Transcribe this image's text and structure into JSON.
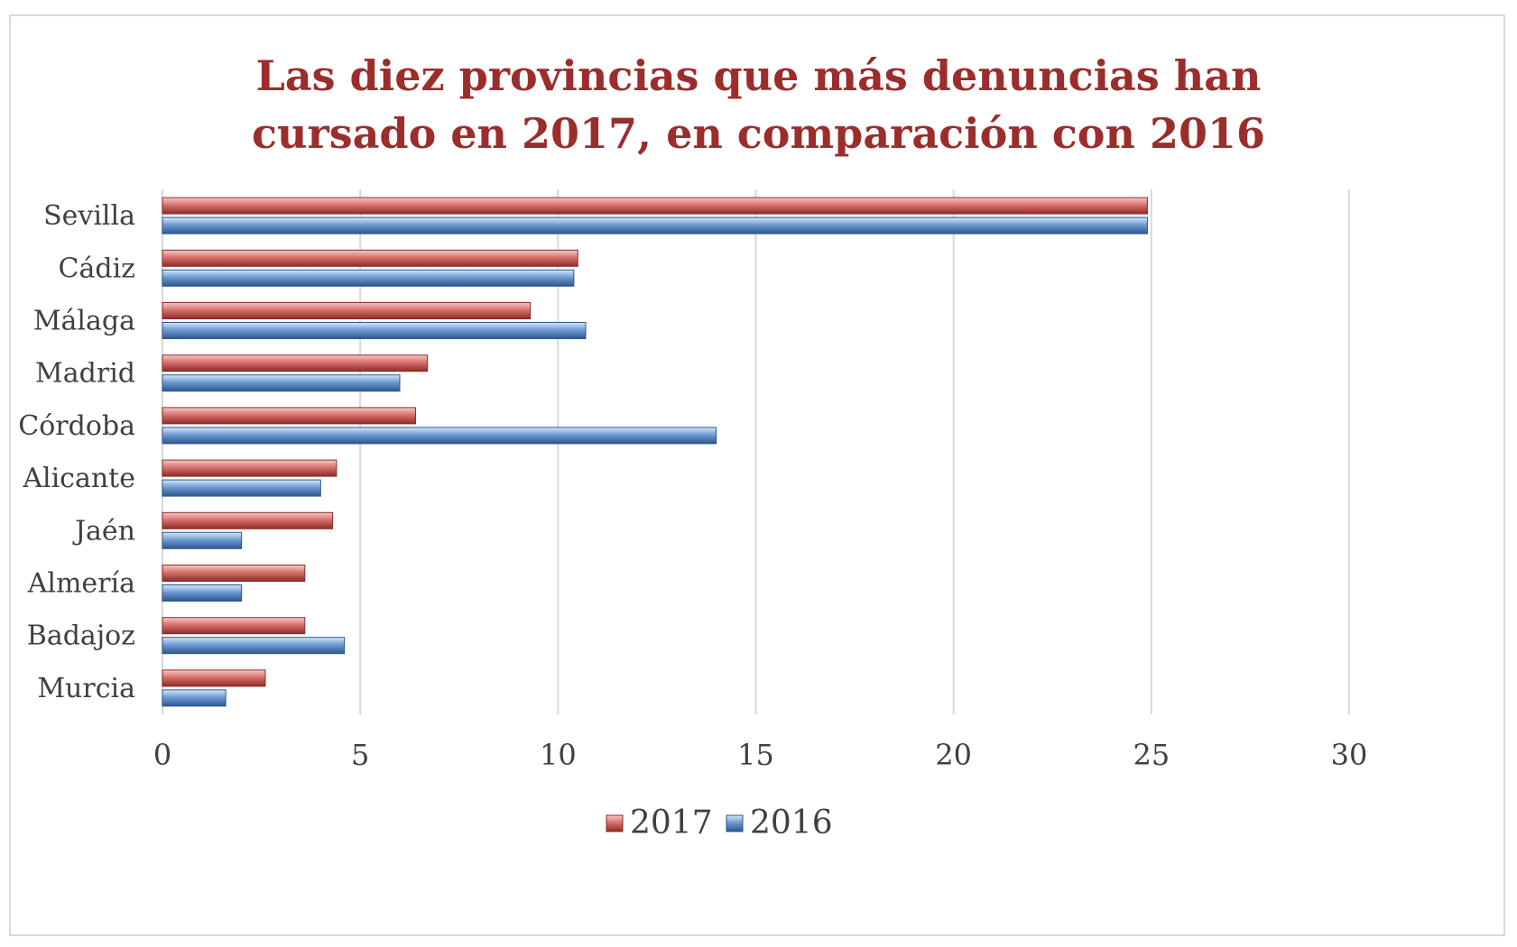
{
  "chart_data": {
    "type": "bar",
    "orientation": "horizontal",
    "title_lines": [
      "Las diez provincias que más denuncias han",
      "cursado en 2017, en comparación con 2016"
    ],
    "categories": [
      "Sevilla",
      "Cádiz",
      "Málaga",
      "Madrid",
      "Córdoba",
      "Alicante",
      "Jaén",
      "Almería",
      "Badajoz",
      "Murcia"
    ],
    "series": [
      {
        "name": "2017",
        "color": "#c0504d",
        "values": [
          24.9,
          10.5,
          9.3,
          6.7,
          6.4,
          4.4,
          4.3,
          3.6,
          3.6,
          2.6
        ]
      },
      {
        "name": "2016",
        "color": "#4f81bd",
        "values": [
          24.9,
          10.4,
          10.7,
          6.0,
          14.0,
          4.0,
          2.0,
          2.0,
          4.6,
          1.6
        ]
      }
    ],
    "xlim": [
      0,
      30
    ],
    "xticks": [
      0,
      5,
      10,
      15,
      20,
      25,
      30
    ],
    "grid": "vertical",
    "legend": "bottom"
  }
}
